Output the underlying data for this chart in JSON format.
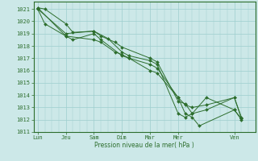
{
  "background_color": "#cce8e8",
  "grid_color": "#9ecece",
  "line_color": "#2d6e2d",
  "marker_color": "#2d6e2d",
  "xlabel": "Pression niveau de la mer( hPa )",
  "ylim": [
    1011,
    1021.6
  ],
  "yticks": [
    1011,
    1012,
    1013,
    1014,
    1015,
    1016,
    1017,
    1018,
    1019,
    1020,
    1021
  ],
  "x_day_labels": [
    "Lun",
    "Jeu",
    "Sam",
    "Dim",
    "Mar",
    "Mer",
    "Ven"
  ],
  "x_day_positions": [
    0,
    2,
    4,
    6,
    8,
    10,
    14
  ],
  "xlim": [
    -0.3,
    15.5
  ],
  "series1": {
    "x": [
      0,
      0.5,
      2,
      2.5,
      4,
      4.5,
      5.5,
      6,
      8,
      8.5,
      10,
      10.5,
      11,
      12,
      14,
      14.5
    ],
    "y": [
      1021.1,
      1021.0,
      1019.8,
      1019.1,
      1019.2,
      1018.8,
      1018.3,
      1017.9,
      1017.0,
      1016.7,
      1013.5,
      1013.3,
      1012.5,
      1013.8,
      1012.8,
      1012.1
    ]
  },
  "series2": {
    "x": [
      0,
      0.5,
      2,
      2.5,
      4,
      4.5,
      6,
      6.5,
      8,
      8.5,
      10,
      10.5,
      11,
      11.5,
      14,
      14.5
    ],
    "y": [
      1021.0,
      1019.8,
      1018.8,
      1018.5,
      1019.0,
      1018.5,
      1017.2,
      1017.0,
      1016.0,
      1015.8,
      1013.8,
      1012.5,
      1012.2,
      1011.5,
      1012.8,
      1012.0
    ]
  },
  "series3": {
    "x": [
      0,
      2,
      4,
      5,
      6,
      6.5,
      8,
      8.5,
      10,
      10.5,
      11,
      12,
      14,
      14.5
    ],
    "y": [
      1021.0,
      1019.0,
      1019.2,
      1018.6,
      1017.5,
      1017.2,
      1016.8,
      1016.5,
      1012.5,
      1012.2,
      1012.5,
      1012.8,
      1013.8,
      1012.1
    ]
  },
  "series4": {
    "x": [
      0,
      2,
      4,
      4.5,
      5.5,
      6,
      6.5,
      8,
      8.5,
      10,
      10.5,
      11,
      12,
      14,
      14.5
    ],
    "y": [
      1021.1,
      1018.8,
      1018.5,
      1018.3,
      1017.5,
      1017.3,
      1017.0,
      1016.5,
      1016.2,
      1013.8,
      1013.2,
      1013.0,
      1013.2,
      1013.8,
      1012.2
    ]
  }
}
